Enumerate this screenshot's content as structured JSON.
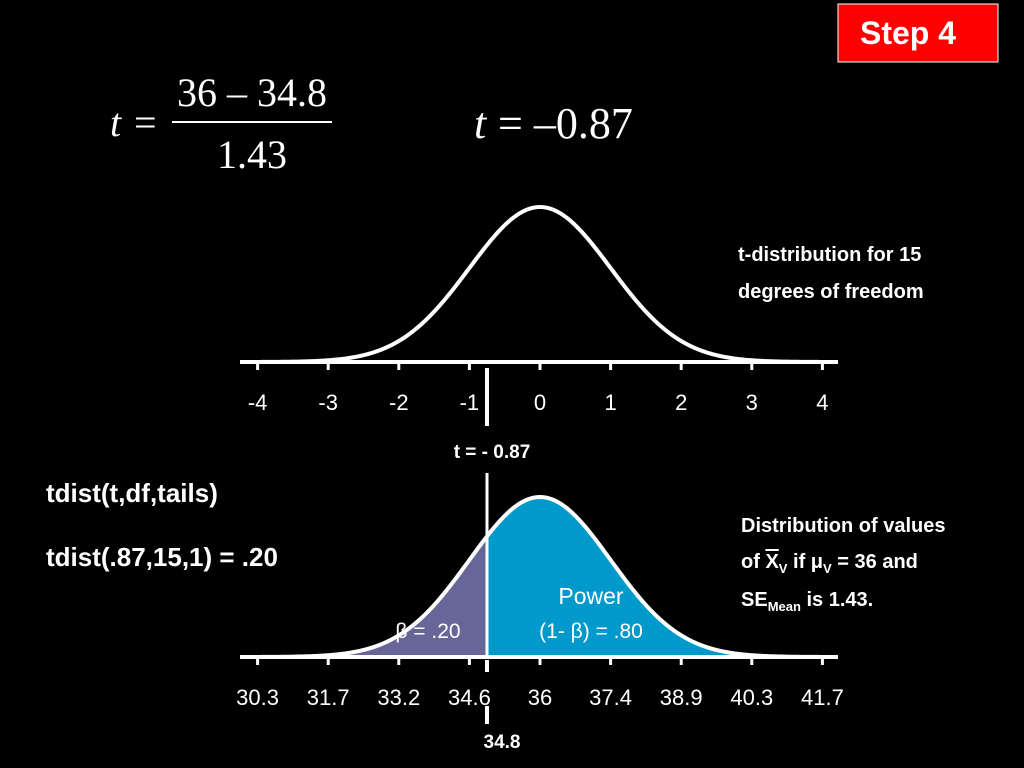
{
  "badge": "Step 4",
  "formula": {
    "lhs": "t",
    "equals": "=",
    "numerator": "36 – 34.8",
    "denominator": "1.43",
    "result_lhs": "t",
    "result_rhs": "= –0.87"
  },
  "top_curve": {
    "label_lines": [
      "t-distribution for 15",
      "degrees of freedom"
    ],
    "ticks": [
      "-4",
      "-3",
      "-2",
      "-1",
      "0",
      "1",
      "2",
      "3",
      "4"
    ],
    "marker": "t = - 0.87"
  },
  "left_text": [
    "tdist(t,df,tails)",
    "tdist(.87,15,1) = .20"
  ],
  "bottom_curve": {
    "description": {
      "line1": "Distribution of values",
      "line2": [
        "of ",
        "X",
        "V",
        " if ",
        "μ",
        "V",
        " = 36 and"
      ],
      "line3": [
        "SE",
        "Mean",
        " is 1.43."
      ]
    },
    "beta_label": "β = .20",
    "power_label": [
      "Power",
      "(1- β) = .80"
    ],
    "ticks": [
      "30.3",
      "31.7",
      "33.2",
      "34.6",
      "36",
      "37.4",
      "38.9",
      "40.3",
      "41.7"
    ],
    "marker": "34.8"
  }
}
